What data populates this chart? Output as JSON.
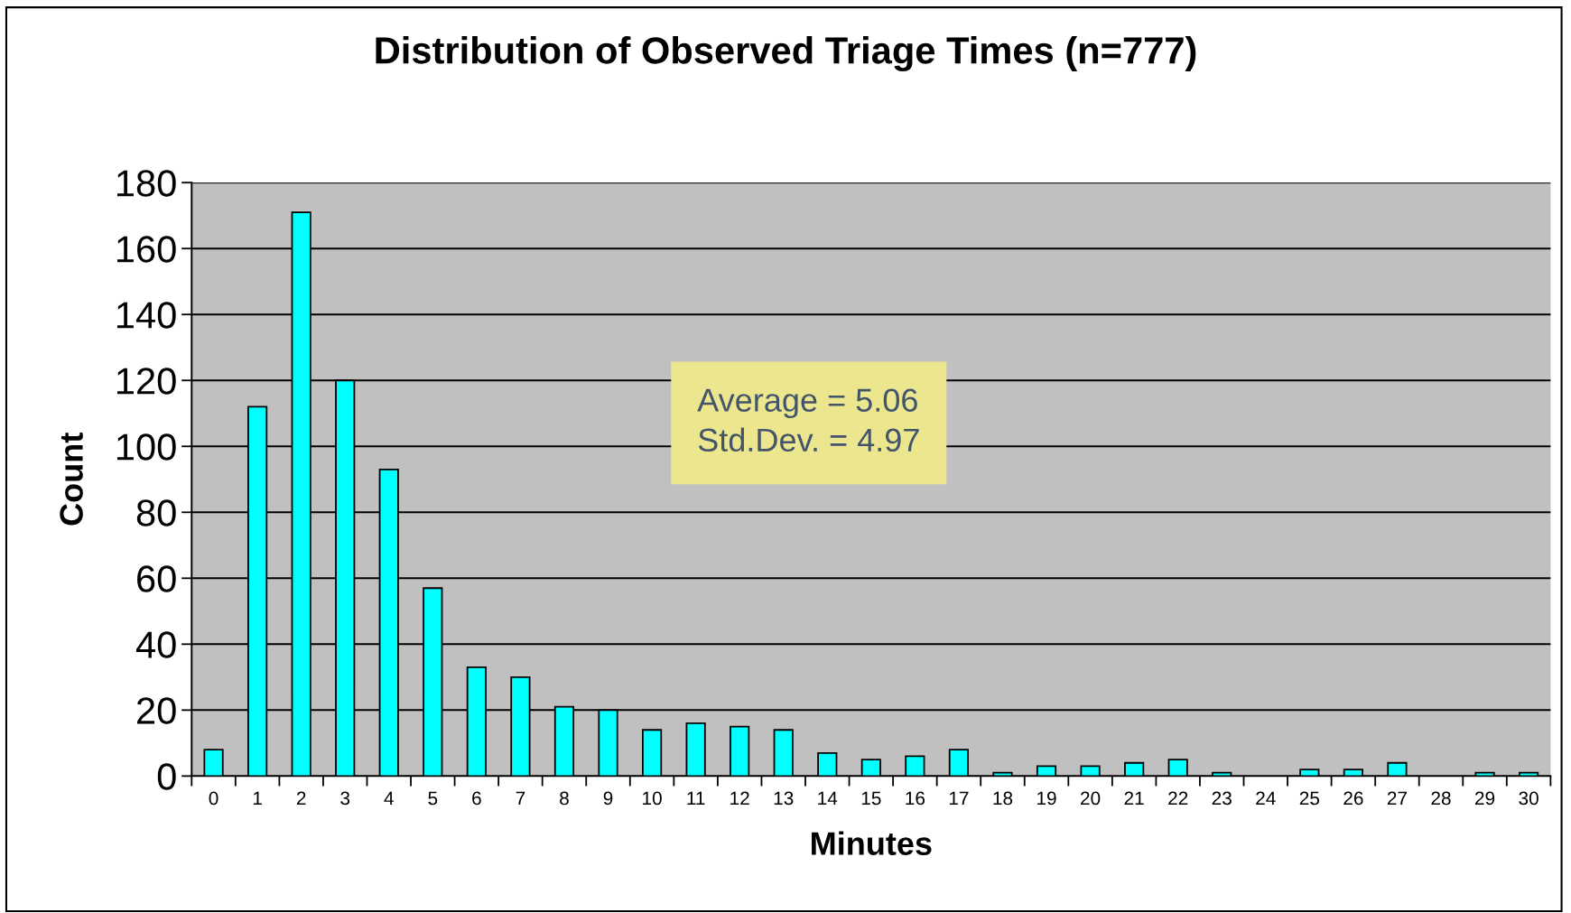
{
  "chart_data": {
    "type": "bar",
    "title": "Distribution of Observed Triage Times (n=777)",
    "xlabel": "Minutes",
    "ylabel": "Count",
    "categories": [
      "0",
      "1",
      "2",
      "3",
      "4",
      "5",
      "6",
      "7",
      "8",
      "9",
      "10",
      "11",
      "12",
      "13",
      "14",
      "15",
      "16",
      "17",
      "18",
      "19",
      "20",
      "21",
      "22",
      "23",
      "24",
      "25",
      "26",
      "27",
      "28",
      "29",
      "30"
    ],
    "values": [
      8,
      112,
      171,
      120,
      93,
      57,
      33,
      30,
      21,
      20,
      14,
      16,
      15,
      14,
      7,
      5,
      6,
      8,
      1,
      3,
      3,
      4,
      5,
      1,
      0,
      2,
      2,
      4,
      0,
      1,
      1
    ],
    "color": "#00ffff",
    "ylim": [
      0,
      180
    ],
    "yticks": [
      0,
      20,
      40,
      60,
      80,
      100,
      120,
      140,
      160,
      180
    ],
    "grid": "y",
    "legend": false,
    "annotations": [
      "Average = 5.06\nStd.Dev. = 4.97"
    ]
  }
}
